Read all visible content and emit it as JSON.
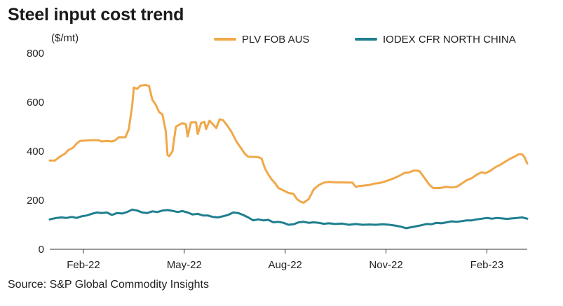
{
  "chart_data": {
    "type": "line",
    "title": "Steel input cost trend",
    "ylabel": "($/mt)",
    "xlabel": "",
    "ylim": [
      0,
      800
    ],
    "y_ticks": [
      "0",
      "200",
      "400",
      "600",
      "800"
    ],
    "x_ticks": [
      "Feb-22",
      "May-22",
      "Aug-22",
      "Nov-22",
      "Feb-23"
    ],
    "x_tick_positions_in_months": [
      1,
      4,
      7,
      10,
      13
    ],
    "x_range_in_months": [
      0.0,
      14.2
    ],
    "grid": false,
    "legend_position": "top",
    "source": "Source: S&P Global Commodity Insights",
    "series": [
      {
        "name": "PLV FOB AUS",
        "color": "#f0a848",
        "points": [
          [
            0.0,
            362
          ],
          [
            0.15,
            362
          ],
          [
            0.3,
            378
          ],
          [
            0.45,
            390
          ],
          [
            0.55,
            405
          ],
          [
            0.7,
            415
          ],
          [
            0.8,
            432
          ],
          [
            0.9,
            442
          ],
          [
            1.2,
            445
          ],
          [
            1.45,
            445
          ],
          [
            1.55,
            440
          ],
          [
            1.7,
            442
          ],
          [
            1.85,
            440
          ],
          [
            1.95,
            445
          ],
          [
            2.05,
            457
          ],
          [
            2.25,
            457
          ],
          [
            2.35,
            490
          ],
          [
            2.45,
            585
          ],
          [
            2.5,
            660
          ],
          [
            2.6,
            655
          ],
          [
            2.7,
            668
          ],
          [
            2.85,
            670
          ],
          [
            2.95,
            667
          ],
          [
            3.05,
            610
          ],
          [
            3.15,
            590
          ],
          [
            3.25,
            560
          ],
          [
            3.35,
            550
          ],
          [
            3.45,
            480
          ],
          [
            3.5,
            385
          ],
          [
            3.55,
            380
          ],
          [
            3.65,
            400
          ],
          [
            3.75,
            500
          ],
          [
            3.85,
            508
          ],
          [
            3.95,
            515
          ],
          [
            4.05,
            510
          ],
          [
            4.1,
            460
          ],
          [
            4.2,
            518
          ],
          [
            4.35,
            518
          ],
          [
            4.4,
            470
          ],
          [
            4.5,
            515
          ],
          [
            4.6,
            520
          ],
          [
            4.65,
            490
          ],
          [
            4.75,
            525
          ],
          [
            4.85,
            510
          ],
          [
            4.95,
            495
          ],
          [
            5.05,
            530
          ],
          [
            5.15,
            527
          ],
          [
            5.25,
            510
          ],
          [
            5.4,
            480
          ],
          [
            5.55,
            440
          ],
          [
            5.7,
            410
          ],
          [
            5.8,
            390
          ],
          [
            5.9,
            378
          ],
          [
            6.2,
            376
          ],
          [
            6.3,
            370
          ],
          [
            6.4,
            330
          ],
          [
            6.5,
            305
          ],
          [
            6.6,
            285
          ],
          [
            6.7,
            270
          ],
          [
            6.8,
            250
          ],
          [
            6.95,
            240
          ],
          [
            7.1,
            230
          ],
          [
            7.25,
            226
          ],
          [
            7.35,
            205
          ],
          [
            7.45,
            195
          ],
          [
            7.55,
            190
          ],
          [
            7.7,
            205
          ],
          [
            7.85,
            245
          ],
          [
            8.0,
            262
          ],
          [
            8.15,
            272
          ],
          [
            8.3,
            275
          ],
          [
            8.5,
            273
          ],
          [
            9.0,
            272
          ],
          [
            9.1,
            255
          ],
          [
            9.2,
            258
          ],
          [
            9.35,
            260
          ],
          [
            9.5,
            262
          ],
          [
            9.65,
            268
          ],
          [
            9.8,
            270
          ],
          [
            10.0,
            278
          ],
          [
            10.2,
            288
          ],
          [
            10.4,
            300
          ],
          [
            10.55,
            312
          ],
          [
            10.7,
            314
          ],
          [
            10.8,
            320
          ],
          [
            10.9,
            322
          ],
          [
            11.0,
            318
          ],
          [
            11.1,
            300
          ],
          [
            11.2,
            280
          ],
          [
            11.3,
            262
          ],
          [
            11.4,
            250
          ],
          [
            11.6,
            250
          ],
          [
            11.8,
            255
          ],
          [
            11.95,
            252
          ],
          [
            12.1,
            255
          ],
          [
            12.25,
            268
          ],
          [
            12.4,
            282
          ],
          [
            12.55,
            290
          ],
          [
            12.7,
            305
          ],
          [
            12.85,
            315
          ],
          [
            12.95,
            310
          ],
          [
            13.1,
            320
          ],
          [
            13.25,
            335
          ],
          [
            13.4,
            345
          ],
          [
            13.55,
            358
          ],
          [
            13.7,
            370
          ],
          [
            13.85,
            380
          ],
          [
            13.95,
            388
          ],
          [
            14.05,
            387
          ],
          [
            14.12,
            375
          ],
          [
            14.2,
            350
          ]
        ]
      },
      {
        "name": "IODEX CFR NORTH CHINA",
        "color": "#1e7f8e",
        "points": [
          [
            0.0,
            122
          ],
          [
            0.2,
            128
          ],
          [
            0.35,
            130
          ],
          [
            0.5,
            128
          ],
          [
            0.65,
            132
          ],
          [
            0.8,
            128
          ],
          [
            0.95,
            135
          ],
          [
            1.1,
            138
          ],
          [
            1.25,
            145
          ],
          [
            1.4,
            150
          ],
          [
            1.55,
            148
          ],
          [
            1.7,
            150
          ],
          [
            1.85,
            140
          ],
          [
            2.0,
            148
          ],
          [
            2.15,
            146
          ],
          [
            2.3,
            152
          ],
          [
            2.45,
            162
          ],
          [
            2.6,
            158
          ],
          [
            2.75,
            150
          ],
          [
            2.9,
            148
          ],
          [
            3.05,
            155
          ],
          [
            3.2,
            152
          ],
          [
            3.35,
            158
          ],
          [
            3.5,
            160
          ],
          [
            3.65,
            157
          ],
          [
            3.8,
            152
          ],
          [
            3.95,
            156
          ],
          [
            4.1,
            150
          ],
          [
            4.25,
            142
          ],
          [
            4.4,
            145
          ],
          [
            4.55,
            138
          ],
          [
            4.7,
            138
          ],
          [
            4.85,
            132
          ],
          [
            5.0,
            130
          ],
          [
            5.15,
            135
          ],
          [
            5.3,
            140
          ],
          [
            5.45,
            150
          ],
          [
            5.6,
            148
          ],
          [
            5.75,
            140
          ],
          [
            5.9,
            130
          ],
          [
            6.05,
            118
          ],
          [
            6.2,
            122
          ],
          [
            6.35,
            118
          ],
          [
            6.5,
            120
          ],
          [
            6.65,
            110
          ],
          [
            6.8,
            112
          ],
          [
            6.95,
            108
          ],
          [
            7.1,
            100
          ],
          [
            7.25,
            102
          ],
          [
            7.4,
            110
          ],
          [
            7.55,
            112
          ],
          [
            7.7,
            108
          ],
          [
            7.85,
            110
          ],
          [
            8.0,
            108
          ],
          [
            8.15,
            104
          ],
          [
            8.3,
            106
          ],
          [
            8.5,
            103
          ],
          [
            8.7,
            105
          ],
          [
            8.9,
            100
          ],
          [
            9.1,
            103
          ],
          [
            9.3,
            100
          ],
          [
            9.5,
            101
          ],
          [
            9.7,
            100
          ],
          [
            9.9,
            102
          ],
          [
            10.1,
            100
          ],
          [
            10.3,
            96
          ],
          [
            10.45,
            92
          ],
          [
            10.6,
            86
          ],
          [
            10.75,
            90
          ],
          [
            10.9,
            94
          ],
          [
            11.05,
            98
          ],
          [
            11.2,
            103
          ],
          [
            11.35,
            102
          ],
          [
            11.5,
            108
          ],
          [
            11.65,
            106
          ],
          [
            11.8,
            110
          ],
          [
            11.95,
            114
          ],
          [
            12.1,
            112
          ],
          [
            12.25,
            115
          ],
          [
            12.4,
            118
          ],
          [
            12.55,
            118
          ],
          [
            12.7,
            122
          ],
          [
            12.85,
            125
          ],
          [
            13.0,
            128
          ],
          [
            13.15,
            125
          ],
          [
            13.3,
            128
          ],
          [
            13.45,
            126
          ],
          [
            13.6,
            124
          ],
          [
            13.75,
            126
          ],
          [
            13.9,
            128
          ],
          [
            14.05,
            130
          ],
          [
            14.2,
            125
          ]
        ]
      }
    ]
  }
}
